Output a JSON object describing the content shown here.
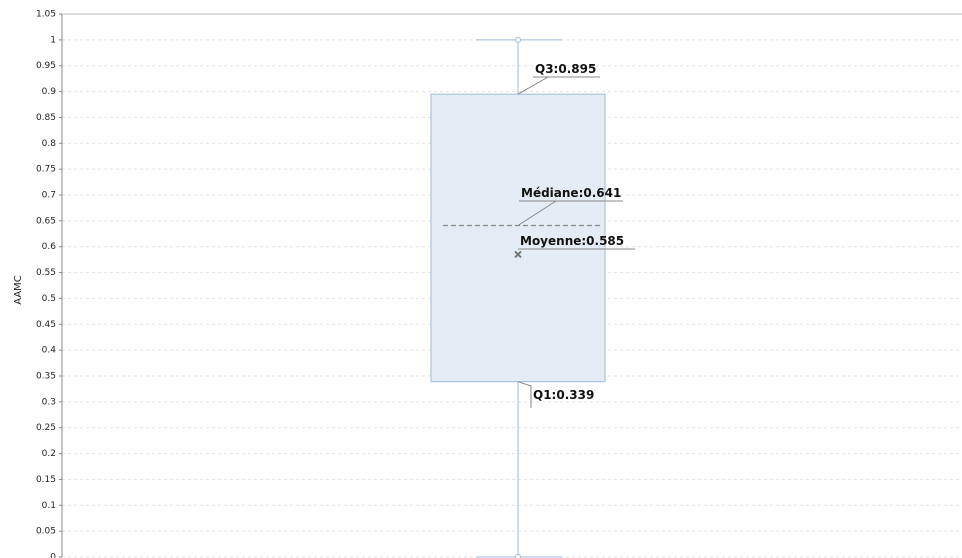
{
  "chart_data": {
    "type": "box",
    "y_label": "AAMC",
    "values": {
      "min": 0,
      "q1": 0.339,
      "median": 0.641,
      "q3": 0.895,
      "max": 1,
      "mean": 0.585
    },
    "value_labels": {
      "q1": "Q1:0.339",
      "median": "Médiane:0.641",
      "mean": "Moyenne:0.585",
      "q3": "Q3:0.895"
    },
    "ylim": [
      0,
      1.05
    ],
    "yticks": [
      0,
      0.05,
      0.1,
      0.15,
      0.2,
      0.25,
      0.3,
      0.35,
      0.4,
      0.45,
      0.5,
      0.55,
      0.6,
      0.65,
      0.7,
      0.75,
      0.8,
      0.85,
      0.9,
      0.95,
      1,
      1.05
    ],
    "grid": true,
    "color": "#e4edf5",
    "edge_color": "#9dbbd8"
  }
}
